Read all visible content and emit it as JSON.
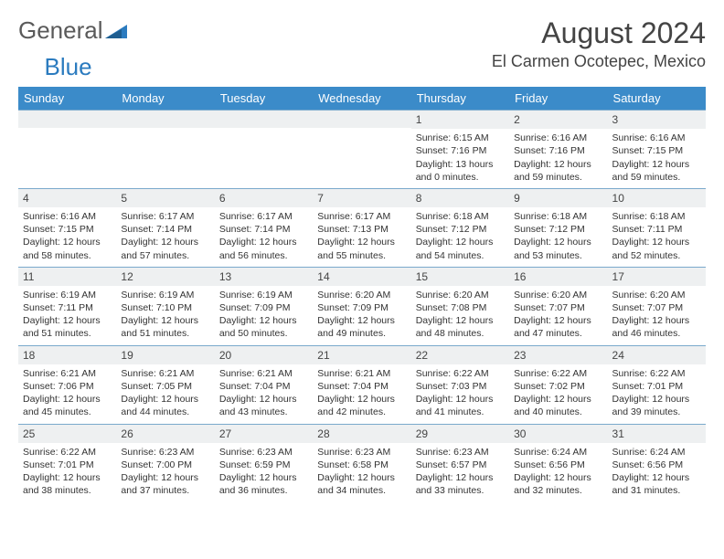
{
  "brand": {
    "part1": "General",
    "part2": "Blue"
  },
  "title": "August 2024",
  "location": "El Carmen Ocotepec, Mexico",
  "colors": {
    "header_bg": "#3b8bc9",
    "header_text": "#ffffff",
    "daynum_bg": "#eef0f1",
    "rule": "#7aa9cc",
    "text": "#333333",
    "title_text": "#444444",
    "brand_gray": "#5a5a5a",
    "brand_blue": "#2b7bbf"
  },
  "weekdays": [
    "Sunday",
    "Monday",
    "Tuesday",
    "Wednesday",
    "Thursday",
    "Friday",
    "Saturday"
  ],
  "weeks": [
    [
      null,
      null,
      null,
      null,
      {
        "n": "1",
        "sunrise": "Sunrise: 6:15 AM",
        "sunset": "Sunset: 7:16 PM",
        "daylight": "Daylight: 13 hours and 0 minutes."
      },
      {
        "n": "2",
        "sunrise": "Sunrise: 6:16 AM",
        "sunset": "Sunset: 7:16 PM",
        "daylight": "Daylight: 12 hours and 59 minutes."
      },
      {
        "n": "3",
        "sunrise": "Sunrise: 6:16 AM",
        "sunset": "Sunset: 7:15 PM",
        "daylight": "Daylight: 12 hours and 59 minutes."
      }
    ],
    [
      {
        "n": "4",
        "sunrise": "Sunrise: 6:16 AM",
        "sunset": "Sunset: 7:15 PM",
        "daylight": "Daylight: 12 hours and 58 minutes."
      },
      {
        "n": "5",
        "sunrise": "Sunrise: 6:17 AM",
        "sunset": "Sunset: 7:14 PM",
        "daylight": "Daylight: 12 hours and 57 minutes."
      },
      {
        "n": "6",
        "sunrise": "Sunrise: 6:17 AM",
        "sunset": "Sunset: 7:14 PM",
        "daylight": "Daylight: 12 hours and 56 minutes."
      },
      {
        "n": "7",
        "sunrise": "Sunrise: 6:17 AM",
        "sunset": "Sunset: 7:13 PM",
        "daylight": "Daylight: 12 hours and 55 minutes."
      },
      {
        "n": "8",
        "sunrise": "Sunrise: 6:18 AM",
        "sunset": "Sunset: 7:12 PM",
        "daylight": "Daylight: 12 hours and 54 minutes."
      },
      {
        "n": "9",
        "sunrise": "Sunrise: 6:18 AM",
        "sunset": "Sunset: 7:12 PM",
        "daylight": "Daylight: 12 hours and 53 minutes."
      },
      {
        "n": "10",
        "sunrise": "Sunrise: 6:18 AM",
        "sunset": "Sunset: 7:11 PM",
        "daylight": "Daylight: 12 hours and 52 minutes."
      }
    ],
    [
      {
        "n": "11",
        "sunrise": "Sunrise: 6:19 AM",
        "sunset": "Sunset: 7:11 PM",
        "daylight": "Daylight: 12 hours and 51 minutes."
      },
      {
        "n": "12",
        "sunrise": "Sunrise: 6:19 AM",
        "sunset": "Sunset: 7:10 PM",
        "daylight": "Daylight: 12 hours and 51 minutes."
      },
      {
        "n": "13",
        "sunrise": "Sunrise: 6:19 AM",
        "sunset": "Sunset: 7:09 PM",
        "daylight": "Daylight: 12 hours and 50 minutes."
      },
      {
        "n": "14",
        "sunrise": "Sunrise: 6:20 AM",
        "sunset": "Sunset: 7:09 PM",
        "daylight": "Daylight: 12 hours and 49 minutes."
      },
      {
        "n": "15",
        "sunrise": "Sunrise: 6:20 AM",
        "sunset": "Sunset: 7:08 PM",
        "daylight": "Daylight: 12 hours and 48 minutes."
      },
      {
        "n": "16",
        "sunrise": "Sunrise: 6:20 AM",
        "sunset": "Sunset: 7:07 PM",
        "daylight": "Daylight: 12 hours and 47 minutes."
      },
      {
        "n": "17",
        "sunrise": "Sunrise: 6:20 AM",
        "sunset": "Sunset: 7:07 PM",
        "daylight": "Daylight: 12 hours and 46 minutes."
      }
    ],
    [
      {
        "n": "18",
        "sunrise": "Sunrise: 6:21 AM",
        "sunset": "Sunset: 7:06 PM",
        "daylight": "Daylight: 12 hours and 45 minutes."
      },
      {
        "n": "19",
        "sunrise": "Sunrise: 6:21 AM",
        "sunset": "Sunset: 7:05 PM",
        "daylight": "Daylight: 12 hours and 44 minutes."
      },
      {
        "n": "20",
        "sunrise": "Sunrise: 6:21 AM",
        "sunset": "Sunset: 7:04 PM",
        "daylight": "Daylight: 12 hours and 43 minutes."
      },
      {
        "n": "21",
        "sunrise": "Sunrise: 6:21 AM",
        "sunset": "Sunset: 7:04 PM",
        "daylight": "Daylight: 12 hours and 42 minutes."
      },
      {
        "n": "22",
        "sunrise": "Sunrise: 6:22 AM",
        "sunset": "Sunset: 7:03 PM",
        "daylight": "Daylight: 12 hours and 41 minutes."
      },
      {
        "n": "23",
        "sunrise": "Sunrise: 6:22 AM",
        "sunset": "Sunset: 7:02 PM",
        "daylight": "Daylight: 12 hours and 40 minutes."
      },
      {
        "n": "24",
        "sunrise": "Sunrise: 6:22 AM",
        "sunset": "Sunset: 7:01 PM",
        "daylight": "Daylight: 12 hours and 39 minutes."
      }
    ],
    [
      {
        "n": "25",
        "sunrise": "Sunrise: 6:22 AM",
        "sunset": "Sunset: 7:01 PM",
        "daylight": "Daylight: 12 hours and 38 minutes."
      },
      {
        "n": "26",
        "sunrise": "Sunrise: 6:23 AM",
        "sunset": "Sunset: 7:00 PM",
        "daylight": "Daylight: 12 hours and 37 minutes."
      },
      {
        "n": "27",
        "sunrise": "Sunrise: 6:23 AM",
        "sunset": "Sunset: 6:59 PM",
        "daylight": "Daylight: 12 hours and 36 minutes."
      },
      {
        "n": "28",
        "sunrise": "Sunrise: 6:23 AM",
        "sunset": "Sunset: 6:58 PM",
        "daylight": "Daylight: 12 hours and 34 minutes."
      },
      {
        "n": "29",
        "sunrise": "Sunrise: 6:23 AM",
        "sunset": "Sunset: 6:57 PM",
        "daylight": "Daylight: 12 hours and 33 minutes."
      },
      {
        "n": "30",
        "sunrise": "Sunrise: 6:24 AM",
        "sunset": "Sunset: 6:56 PM",
        "daylight": "Daylight: 12 hours and 32 minutes."
      },
      {
        "n": "31",
        "sunrise": "Sunrise: 6:24 AM",
        "sunset": "Sunset: 6:56 PM",
        "daylight": "Daylight: 12 hours and 31 minutes."
      }
    ]
  ]
}
